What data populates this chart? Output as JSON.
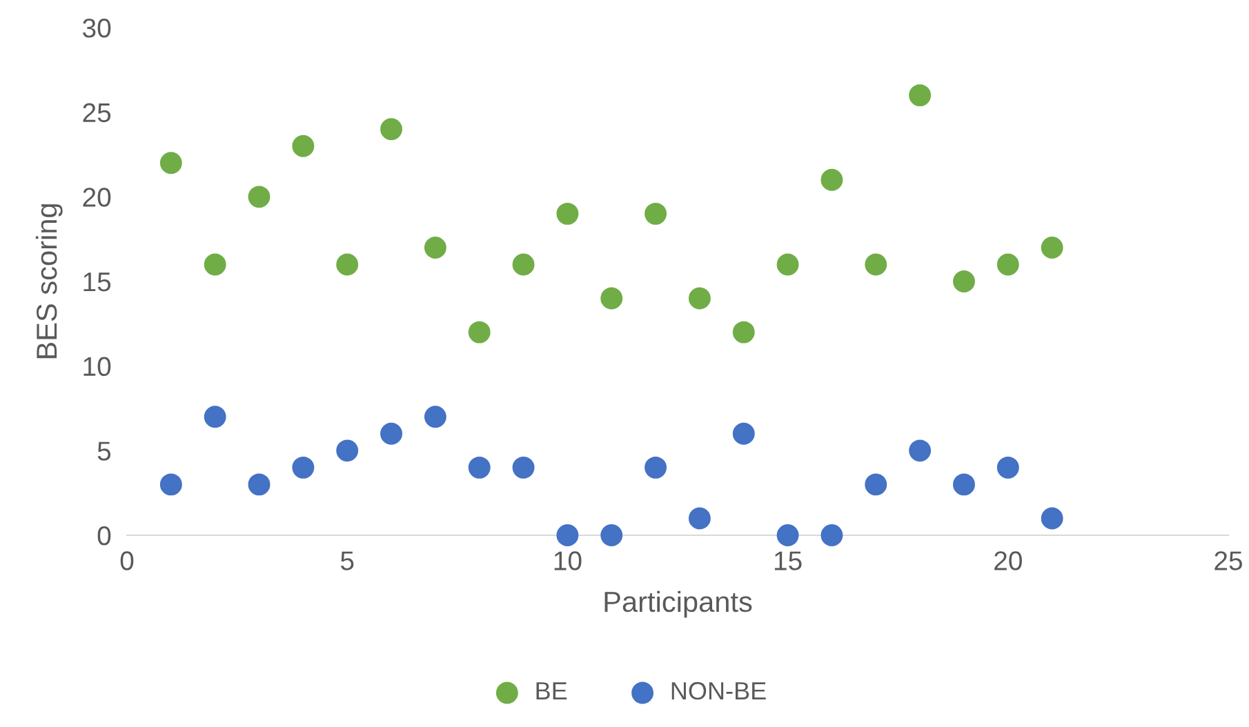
{
  "chart_data": {
    "type": "scatter",
    "xlabel": "Participants",
    "ylabel": "BES scoring",
    "x": [
      1,
      2,
      3,
      4,
      5,
      6,
      7,
      8,
      9,
      10,
      11,
      12,
      13,
      14,
      15,
      16,
      17,
      18,
      19,
      20,
      21
    ],
    "series": [
      {
        "name": "BE",
        "color": "#70ad47",
        "values": [
          22,
          16,
          20,
          23,
          16,
          24,
          17,
          12,
          16,
          19,
          14,
          19,
          14,
          12,
          16,
          21,
          16,
          26,
          15,
          16,
          17
        ]
      },
      {
        "name": "NON-BE",
        "color": "#4472c4",
        "values": [
          3,
          7,
          3,
          4,
          5,
          6,
          7,
          4,
          4,
          0,
          0,
          4,
          1,
          6,
          0,
          0,
          3,
          5,
          3,
          4,
          1
        ]
      }
    ],
    "xlim": [
      0,
      25
    ],
    "xticks": [
      0,
      5,
      10,
      15,
      20,
      25
    ],
    "ylim": [
      0,
      30
    ],
    "yticks": [
      0,
      5,
      10,
      15,
      20,
      25,
      30
    ],
    "grid": false,
    "legend": "bottom",
    "marker": "circle"
  }
}
